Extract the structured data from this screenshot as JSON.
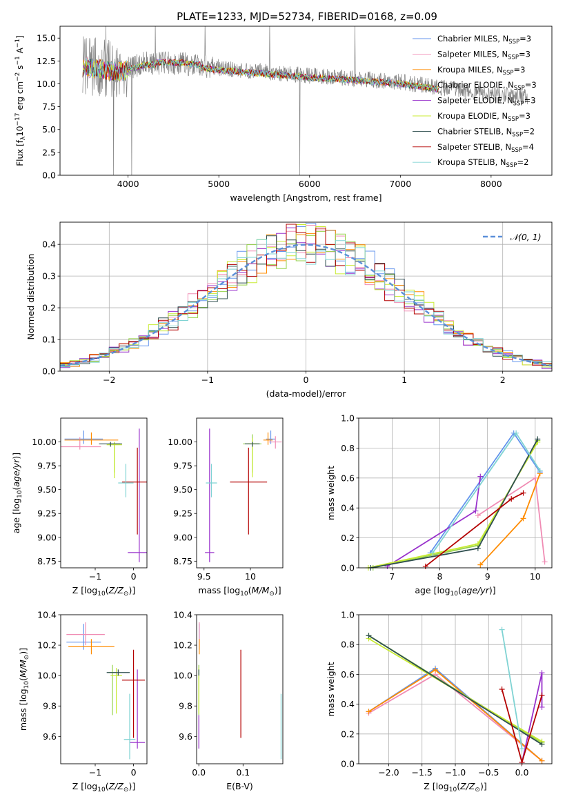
{
  "figure_title": "PLATE=1233, MJD=52734, FIBERID=0168, z=0.09",
  "models": [
    {
      "name": "Chabrier MILES",
      "nssp": "3",
      "color": "#6495ed"
    },
    {
      "name": "Salpeter MILES",
      "nssp": "3",
      "color": "#f08cb4"
    },
    {
      "name": "Kroupa MILES",
      "nssp": "3",
      "color": "#ff8c00"
    },
    {
      "name": "Chabrier ELODIE",
      "nssp": "3",
      "color": "#96d24b"
    },
    {
      "name": "Salpeter ELODIE",
      "nssp": "3",
      "color": "#9932cc"
    },
    {
      "name": "Kroupa ELODIE",
      "nssp": "3",
      "color": "#c8eb32"
    },
    {
      "name": "Chabrier STELIB",
      "nssp": "2",
      "color": "#2f4f4f"
    },
    {
      "name": "Salpeter STELIB",
      "nssp": "4",
      "color": "#b40000"
    },
    {
      "name": "Kroupa STELIB",
      "nssp": "2",
      "color": "#7fd3d3"
    }
  ],
  "legend_template": "{name}, N",
  "legend_sub": "SSP",
  "chart_data": [
    {
      "type": "line",
      "id": "spectrum",
      "xlabel": "wavelength [Angstrom, rest frame]",
      "ylabel": "Flux [f",
      "ylabel_full": "Flux [fλ10⁻¹⁷ erg cm⁻² s⁻¹ A⁻¹]",
      "xlim": [
        3250,
        8670
      ],
      "ylim": [
        0,
        16.3
      ],
      "xticks": [
        4000,
        5000,
        6000,
        7000,
        8000
      ],
      "yticks": [
        0.0,
        2.5,
        5.0,
        7.5,
        10.0,
        12.5,
        15.0
      ],
      "ytick_labels": [
        "0.0",
        "2.5",
        "5.0",
        "7.5",
        "10.0",
        "12.5",
        "15.0"
      ],
      "data_color": "#808080",
      "data_x_range": [
        3500,
        8400
      ],
      "data_envelope": [
        [
          3500,
          12.0
        ],
        [
          3700,
          11.8
        ],
        [
          3900,
          11.5
        ],
        [
          4200,
          12.3
        ],
        [
          4600,
          12.2
        ],
        [
          5000,
          11.7
        ],
        [
          5500,
          11.3
        ],
        [
          6000,
          10.9
        ],
        [
          6500,
          10.6
        ],
        [
          7000,
          10.2
        ],
        [
          7500,
          9.5
        ],
        [
          8000,
          8.9
        ],
        [
          8400,
          8.6
        ]
      ],
      "grid": false,
      "legend_position": "upper right"
    },
    {
      "type": "histogram",
      "id": "residuals",
      "xlabel": "(data-model)/error",
      "ylabel": "Normed distribution",
      "xlim": [
        -2.5,
        2.5
      ],
      "ylim": [
        0,
        0.47
      ],
      "xticks": [
        -2,
        -1,
        0,
        1,
        2
      ],
      "yticks": [
        0.0,
        0.1,
        0.2,
        0.3,
        0.4
      ],
      "ytick_labels": [
        "0.0",
        "0.1",
        "0.2",
        "0.3",
        "0.4"
      ],
      "reference_curve": {
        "name": "N(0,1)",
        "color": "#5b8fd9"
      },
      "grid": true,
      "legend_position": "upper right"
    },
    {
      "type": "errorbar",
      "id": "age_vs_Z",
      "xlabel": "Z [log",
      "ylabel": "age  [log",
      "xlim": [
        -1.9,
        0.35
      ],
      "ylim": [
        8.68,
        10.25
      ],
      "xticks": [
        -1,
        0
      ],
      "yticks": [
        8.75,
        9.0,
        9.25,
        9.5,
        9.75,
        10.0
      ],
      "ytick_labels": [
        "8.75",
        "9.00",
        "9.25",
        "9.50",
        "9.75",
        "10.00"
      ],
      "points": [
        {
          "x": -1.3,
          "y": 10.03,
          "xerr": 0.5,
          "yerr": [
            0.05,
            0.09
          ],
          "color": "#6495ed"
        },
        {
          "x": -1.4,
          "y": 9.95,
          "xerr": 0.55,
          "yerr": [
            0.03,
            0.1
          ],
          "color": "#f08cb4"
        },
        {
          "x": -1.1,
          "y": 10.02,
          "xerr": 0.7,
          "yerr": [
            0.05,
            0.08
          ],
          "color": "#ff8c00"
        },
        {
          "x": -0.5,
          "y": 9.98,
          "xerr": 0.15,
          "yerr": [
            0.3,
            0.02
          ],
          "color": "#96d24b"
        },
        {
          "x": 0.15,
          "y": 8.84,
          "xerr": 0.3,
          "yerr": [
            0.1,
            1.3
          ],
          "color": "#9932cc"
        },
        {
          "x": -0.5,
          "y": 9.97,
          "xerr": 0.2,
          "yerr": [
            0.35,
            0.03
          ],
          "color": "#c8eb32"
        },
        {
          "x": -0.6,
          "y": 9.98,
          "xerr": 0.3,
          "yerr": [
            0.03,
            0.02
          ],
          "color": "#2f4f4f"
        },
        {
          "x": 0.1,
          "y": 9.58,
          "xerr": 0.4,
          "yerr": [
            0.55,
            0.36
          ],
          "color": "#b40000"
        },
        {
          "x": -0.2,
          "y": 9.57,
          "xerr": 0.2,
          "yerr": [
            0.15,
            0.2
          ],
          "color": "#7fd3d3"
        }
      ]
    },
    {
      "type": "errorbar",
      "id": "age_vs_mass",
      "xlabel": "mass [log",
      "ylabel": "",
      "xlim": [
        9.42,
        10.35
      ],
      "ylim": [
        8.68,
        10.25
      ],
      "xticks": [
        9.5,
        10.0
      ],
      "yticks": [
        8.75,
        9.0,
        9.25,
        9.5,
        9.75,
        10.0
      ],
      "ytick_labels": [
        "8.75",
        "9.00",
        "9.25",
        "9.50",
        "9.75",
        "10.00"
      ],
      "points": [
        {
          "x": 10.22,
          "y": 10.03,
          "xerr": 0.05,
          "yerr": [
            0.05,
            0.09
          ],
          "color": "#6495ed"
        },
        {
          "x": 10.27,
          "y": 10.0,
          "xerr": 0.07,
          "yerr": [
            0.07,
            0.06
          ],
          "color": "#f08cb4"
        },
        {
          "x": 10.19,
          "y": 10.02,
          "xerr": 0.05,
          "yerr": [
            0.05,
            0.08
          ],
          "color": "#ff8c00"
        },
        {
          "x": 10.02,
          "y": 9.98,
          "xerr": 0.1,
          "yerr": [
            0.3,
            0.1
          ],
          "color": "#96d24b"
        },
        {
          "x": 9.56,
          "y": 8.84,
          "xerr": 0.05,
          "yerr": [
            0.1,
            1.3
          ],
          "color": "#9932cc"
        },
        {
          "x": 10.02,
          "y": 9.98,
          "xerr": 0.05,
          "yerr": [
            0.35,
            0.06
          ],
          "color": "#c8eb32"
        },
        {
          "x": 10.02,
          "y": 9.98,
          "xerr": 0.08,
          "yerr": [
            0.03,
            0.02
          ],
          "color": "#2f4f4f"
        },
        {
          "x": 9.98,
          "y": 9.58,
          "xerr": 0.2,
          "yerr": [
            0.55,
            0.36
          ],
          "color": "#b40000"
        },
        {
          "x": 9.58,
          "y": 9.57,
          "xerr": 0.06,
          "yerr": [
            0.15,
            0.2
          ],
          "color": "#7fd3d3"
        }
      ]
    },
    {
      "type": "line",
      "id": "weight_vs_age",
      "xlabel": "age  [log",
      "ylabel": "mass weight",
      "xlim": [
        6.3,
        10.35
      ],
      "ylim": [
        0,
        1.0
      ],
      "xticks": [
        7,
        8,
        9,
        10
      ],
      "yticks": [
        0.0,
        0.2,
        0.4,
        0.6,
        0.8,
        1.0
      ],
      "ytick_labels": [
        "0.0",
        "0.2",
        "0.4",
        "0.6",
        "0.8",
        "1.0"
      ],
      "grid": true,
      "series": [
        {
          "color": "#6495ed",
          "x": [
            7.8,
            9.55,
            10.1
          ],
          "y": [
            0.1,
            0.9,
            0.64
          ]
        },
        {
          "color": "#f08cb4",
          "x": [
            8.8,
            10.0,
            10.2
          ],
          "y": [
            0.35,
            0.6,
            0.04
          ]
        },
        {
          "color": "#ff8c00",
          "x": [
            8.85,
            9.75,
            10.1
          ],
          "y": [
            0.02,
            0.33,
            0.63
          ]
        },
        {
          "color": "#96d24b",
          "x": [
            6.6,
            8.8,
            10.05
          ],
          "y": [
            0.0,
            0.15,
            0.85
          ]
        },
        {
          "color": "#9932cc",
          "x": [
            6.9,
            8.75,
            8.85
          ],
          "y": [
            0.01,
            0.38,
            0.61
          ]
        },
        {
          "color": "#c8eb32",
          "x": [
            6.5,
            8.8,
            10.05
          ],
          "y": [
            0.0,
            0.16,
            0.84
          ]
        },
        {
          "color": "#2f4f4f",
          "x": [
            6.55,
            8.8,
            10.05
          ],
          "y": [
            0.0,
            0.13,
            0.86
          ]
        },
        {
          "color": "#b40000",
          "x": [
            7.7,
            9.5,
            9.75
          ],
          "y": [
            0.01,
            0.46,
            0.5
          ]
        },
        {
          "color": "#7fd3d3",
          "x": [
            7.85,
            9.6,
            10.1
          ],
          "y": [
            0.1,
            0.9,
            0.65
          ]
        }
      ]
    },
    {
      "type": "errorbar",
      "id": "mass_vs_Z",
      "xlabel": "Z [log",
      "ylabel": "mass [log",
      "xlim": [
        -1.9,
        0.35
      ],
      "ylim": [
        9.42,
        10.4
      ],
      "xticks": [
        -1,
        0
      ],
      "yticks": [
        9.6,
        9.8,
        10.0,
        10.2,
        10.4
      ],
      "ytick_labels": [
        "9.6",
        "9.8",
        "10.0",
        "10.2",
        "10.4"
      ],
      "points": [
        {
          "x": -1.3,
          "y": 10.22,
          "xerr": 0.45,
          "yerr": [
            0.05,
            0.12
          ],
          "color": "#6495ed"
        },
        {
          "x": -1.25,
          "y": 10.27,
          "xerr": 0.5,
          "yerr": [
            0.07,
            0.08
          ],
          "color": "#f08cb4"
        },
        {
          "x": -1.1,
          "y": 10.19,
          "xerr": 0.6,
          "yerr": [
            0.05,
            0.05
          ],
          "color": "#ff8c00"
        },
        {
          "x": -0.55,
          "y": 10.02,
          "xerr": 0.1,
          "yerr": [
            0.28,
            0.05
          ],
          "color": "#96d24b"
        },
        {
          "x": 0.1,
          "y": 9.56,
          "xerr": 0.2,
          "yerr": [
            0.04,
            0.48
          ],
          "color": "#9932cc"
        },
        {
          "x": -0.45,
          "y": 10.0,
          "xerr": 0.15,
          "yerr": [
            0.25,
            0.05
          ],
          "color": "#c8eb32"
        },
        {
          "x": -0.4,
          "y": 10.02,
          "xerr": 0.3,
          "yerr": [
            0.02,
            0.02
          ],
          "color": "#2f4f4f"
        },
        {
          "x": 0.0,
          "y": 9.97,
          "xerr": 0.3,
          "yerr": [
            0.38,
            0.2
          ],
          "color": "#b40000"
        },
        {
          "x": -0.1,
          "y": 9.58,
          "xerr": 0.15,
          "yerr": [
            0.13,
            0.3
          ],
          "color": "#7fd3d3"
        }
      ]
    },
    {
      "type": "errorbar",
      "id": "mass_vs_ebv",
      "xlabel": "E(B-V)",
      "ylabel": "",
      "xlim": [
        -0.005,
        0.19
      ],
      "ylim": [
        9.42,
        10.4
      ],
      "xticks": [
        0.0,
        0.1
      ],
      "xtick_labels": [
        "0.0",
        "0.1"
      ],
      "yticks": [
        9.6,
        9.8,
        10.0,
        10.2,
        10.4
      ],
      "ytick_labels": [
        "9.6",
        "9.8",
        "10.0",
        "10.2",
        "10.4"
      ],
      "points": [
        {
          "x": 0.001,
          "y": 10.22,
          "xerr": 0.0,
          "yerr": [
            0.05,
            0.12
          ],
          "color": "#6495ed"
        },
        {
          "x": 0.001,
          "y": 10.27,
          "xerr": 0.0,
          "yerr": [
            0.07,
            0.08
          ],
          "color": "#f08cb4"
        },
        {
          "x": 0.001,
          "y": 10.19,
          "xerr": 0.0,
          "yerr": [
            0.05,
            0.05
          ],
          "color": "#ff8c00"
        },
        {
          "x": 0.0,
          "y": 10.02,
          "xerr": 0.0,
          "yerr": [
            0.28,
            0.05
          ],
          "color": "#96d24b"
        },
        {
          "x": 0.0,
          "y": 9.56,
          "xerr": 0.0,
          "yerr": [
            0.04,
            0.18
          ],
          "color": "#9932cc"
        },
        {
          "x": 0.0,
          "y": 10.0,
          "xerr": 0.0,
          "yerr": [
            0.25,
            0.05
          ],
          "color": "#c8eb32"
        },
        {
          "x": 0.0,
          "y": 10.02,
          "xerr": 0.0,
          "yerr": [
            0.02,
            0.02
          ],
          "color": "#2f4f4f"
        },
        {
          "x": 0.095,
          "y": 9.97,
          "xerr": 0.0,
          "yerr": [
            0.38,
            0.2
          ],
          "color": "#b40000"
        },
        {
          "x": 0.186,
          "y": 9.65,
          "xerr": 0.0,
          "yerr": [
            0.2,
            0.23
          ],
          "color": "#7fd3d3"
        }
      ]
    },
    {
      "type": "line",
      "id": "weight_vs_Z",
      "xlabel": "Z [log",
      "ylabel": "mass weight",
      "xlim": [
        -2.45,
        0.45
      ],
      "ylim": [
        0,
        1.0
      ],
      "xticks": [
        -2.0,
        -1.5,
        -1.0,
        -0.5,
        0.0
      ],
      "xtick_labels": [
        "−2.0",
        "−1.5",
        "−1.0",
        "−0.5",
        "0.0"
      ],
      "yticks": [
        0.0,
        0.2,
        0.4,
        0.6,
        0.8,
        1.0
      ],
      "ytick_labels": [
        "0.0",
        "0.2",
        "0.4",
        "0.6",
        "0.8",
        "1.0"
      ],
      "grid": true,
      "series": [
        {
          "color": "#6495ed",
          "x": [
            -2.3,
            -1.3,
            0.3
          ],
          "y": [
            0.35,
            0.64,
            0.02
          ]
        },
        {
          "color": "#f08cb4",
          "x": [
            -2.3,
            -1.3,
            0.3
          ],
          "y": [
            0.34,
            0.6,
            0.02
          ]
        },
        {
          "color": "#ff8c00",
          "x": [
            -2.3,
            -1.3,
            0.3
          ],
          "y": [
            0.35,
            0.63,
            0.02
          ]
        },
        {
          "color": "#96d24b",
          "x": [
            -2.3,
            0.3
          ],
          "y": [
            0.86,
            0.14
          ]
        },
        {
          "color": "#9932cc",
          "x": [
            0.0,
            0.3,
            0.3
          ],
          "y": [
            0.01,
            0.61,
            0.38
          ]
        },
        {
          "color": "#c8eb32",
          "x": [
            -2.3,
            0.3
          ],
          "y": [
            0.84,
            0.15
          ]
        },
        {
          "color": "#2f4f4f",
          "x": [
            -2.3,
            0.3
          ],
          "y": [
            0.86,
            0.13
          ]
        },
        {
          "color": "#b40000",
          "x": [
            -0.3,
            0.0,
            0.3
          ],
          "y": [
            0.5,
            0.01,
            0.46
          ]
        },
        {
          "color": "#7fd3d3",
          "x": [
            -0.3,
            0.0
          ],
          "y": [
            0.9,
            0.1
          ]
        }
      ]
    }
  ]
}
